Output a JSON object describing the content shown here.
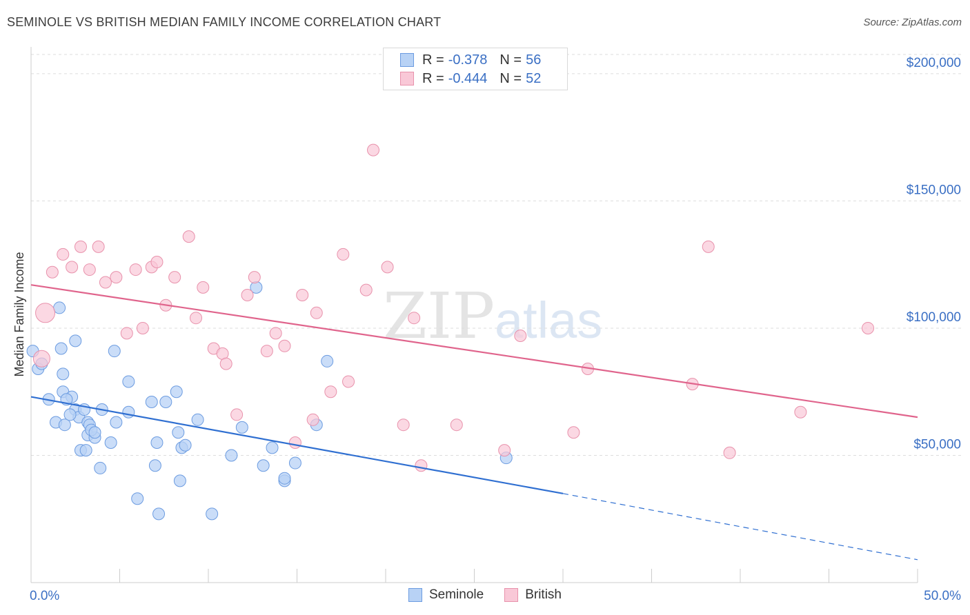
{
  "title": "SEMINOLE VS BRITISH MEDIAN FAMILY INCOME CORRELATION CHART",
  "source": "Source: ZipAtlas.com",
  "watermark": {
    "zip": "ZIP",
    "atlas": "atlas"
  },
  "legend": {
    "rows": [
      {
        "r_label": "R =",
        "r_value": "-0.378",
        "n_label": "N =",
        "n_value": "56"
      },
      {
        "r_label": "R =",
        "r_value": "-0.444",
        "n_label": "N =",
        "n_value": "52"
      }
    ]
  },
  "bottom_legend": [
    "Seminole",
    "British"
  ],
  "colors": {
    "seminole_fill": "#b8d2f5",
    "seminole_stroke": "#6b9be0",
    "seminole_line": "#2f6fd1",
    "british_fill": "#f9c8d7",
    "british_stroke": "#e891ab",
    "british_line": "#e0648c",
    "axis_label": "#3a6fc4"
  },
  "chart_data": {
    "type": "scatter",
    "title": "SEMINOLE VS BRITISH MEDIAN FAMILY INCOME CORRELATION CHART",
    "xlabel": "",
    "ylabel": "Median Family Income",
    "xlim": [
      0,
      50
    ],
    "ylim": [
      0,
      210000
    ],
    "x_tick_labels": [
      "0.0%",
      "50.0%"
    ],
    "y_ticks": [
      50000,
      100000,
      150000,
      200000
    ],
    "y_tick_labels": [
      "$50,000",
      "$100,000",
      "$150,000",
      "$200,000"
    ],
    "series": [
      {
        "name": "Seminole",
        "points": [
          [
            0.1,
            91000
          ],
          [
            0.4,
            84000
          ],
          [
            0.6,
            86000
          ],
          [
            1.6,
            108000
          ],
          [
            1.7,
            92000
          ],
          [
            1.8,
            82000
          ],
          [
            1.8,
            75000
          ],
          [
            2.3,
            73000
          ],
          [
            2.0,
            72000
          ],
          [
            2.5,
            68000
          ],
          [
            1.4,
            63000
          ],
          [
            1.9,
            62000
          ],
          [
            2.5,
            95000
          ],
          [
            2.7,
            65000
          ],
          [
            3.0,
            68000
          ],
          [
            3.2,
            63000
          ],
          [
            3.2,
            58000
          ],
          [
            3.6,
            57000
          ],
          [
            3.3,
            62000
          ],
          [
            3.4,
            60000
          ],
          [
            3.6,
            59000
          ],
          [
            2.8,
            52000
          ],
          [
            3.1,
            52000
          ],
          [
            4.0,
            68000
          ],
          [
            3.9,
            45000
          ],
          [
            4.7,
            91000
          ],
          [
            4.8,
            63000
          ],
          [
            5.5,
            79000
          ],
          [
            5.5,
            67000
          ],
          [
            6.8,
            71000
          ],
          [
            7.1,
            55000
          ],
          [
            7.0,
            46000
          ],
          [
            7.6,
            71000
          ],
          [
            8.2,
            75000
          ],
          [
            8.3,
            59000
          ],
          [
            8.5,
            53000
          ],
          [
            8.7,
            54000
          ],
          [
            6.0,
            33000
          ],
          [
            7.2,
            27000
          ],
          [
            8.4,
            40000
          ],
          [
            10.2,
            27000
          ],
          [
            11.3,
            50000
          ],
          [
            11.9,
            61000
          ],
          [
            13.1,
            46000
          ],
          [
            13.6,
            53000
          ],
          [
            14.9,
            47000
          ],
          [
            14.3,
            40000
          ],
          [
            14.3,
            41000
          ],
          [
            12.7,
            116000
          ],
          [
            16.1,
            62000
          ],
          [
            16.7,
            87000
          ],
          [
            26.8,
            49000
          ],
          [
            1.0,
            72000
          ],
          [
            2.2,
            66000
          ],
          [
            4.5,
            55000
          ],
          [
            9.4,
            64000
          ]
        ],
        "trend": {
          "x_start": 0,
          "y_start": 73000,
          "x_solid_end": 30,
          "y_solid_end": 35000,
          "x_end": 50,
          "y_end": 9000
        }
      },
      {
        "name": "British",
        "points": [
          [
            0.6,
            88000
          ],
          [
            0.8,
            106000
          ],
          [
            1.2,
            122000
          ],
          [
            1.8,
            129000
          ],
          [
            2.3,
            124000
          ],
          [
            2.8,
            132000
          ],
          [
            3.3,
            123000
          ],
          [
            3.8,
            132000
          ],
          [
            4.2,
            118000
          ],
          [
            4.8,
            120000
          ],
          [
            5.4,
            98000
          ],
          [
            5.9,
            123000
          ],
          [
            6.3,
            100000
          ],
          [
            6.8,
            124000
          ],
          [
            7.1,
            126000
          ],
          [
            7.6,
            109000
          ],
          [
            8.1,
            120000
          ],
          [
            8.9,
            136000
          ],
          [
            9.3,
            104000
          ],
          [
            9.7,
            116000
          ],
          [
            10.3,
            92000
          ],
          [
            10.8,
            90000
          ],
          [
            11.0,
            86000
          ],
          [
            11.6,
            66000
          ],
          [
            12.2,
            113000
          ],
          [
            12.6,
            120000
          ],
          [
            13.3,
            91000
          ],
          [
            13.8,
            98000
          ],
          [
            14.3,
            93000
          ],
          [
            14.9,
            55000
          ],
          [
            15.3,
            113000
          ],
          [
            15.9,
            64000
          ],
          [
            16.1,
            106000
          ],
          [
            16.9,
            75000
          ],
          [
            17.6,
            129000
          ],
          [
            17.9,
            79000
          ],
          [
            18.9,
            115000
          ],
          [
            19.3,
            170000
          ],
          [
            20.1,
            124000
          ],
          [
            21.0,
            62000
          ],
          [
            21.6,
            104000
          ],
          [
            22.0,
            46000
          ],
          [
            24.0,
            62000
          ],
          [
            26.7,
            52000
          ],
          [
            27.6,
            97000
          ],
          [
            30.6,
            59000
          ],
          [
            31.4,
            84000
          ],
          [
            37.3,
            78000
          ],
          [
            38.2,
            132000
          ],
          [
            39.4,
            51000
          ],
          [
            43.4,
            67000
          ],
          [
            47.2,
            100000
          ]
        ],
        "trend": {
          "x_start": 0,
          "y_start": 117000,
          "x_end": 50,
          "y_end": 65000
        }
      }
    ]
  }
}
